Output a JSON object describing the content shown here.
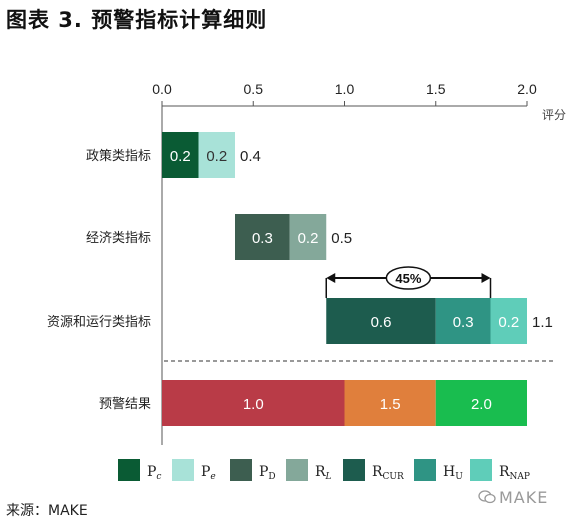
{
  "figure_title": "图表 3. 预警指标计算细则",
  "source_label": "来源：MAKE",
  "watermark_text": "MAKE",
  "chart_data": {
    "type": "bar",
    "orientation": "horizontal",
    "stacked": true,
    "title": "",
    "xlabel": "评分",
    "ylabel": "",
    "xlim": [
      0,
      2.0
    ],
    "x_ticks": [
      "0.0",
      "0.5",
      "1.0",
      "1.5",
      "2.0"
    ],
    "x_tick_values": [
      0,
      0.5,
      1.0,
      1.5,
      2.0
    ],
    "x_axis_position": "top",
    "grid": false,
    "categories": [
      "政策类指标",
      "经济类指标",
      "资源和运行类指标",
      "预警结果"
    ],
    "rows": [
      {
        "category": "政策类指标",
        "start": 0,
        "segments": [
          {
            "series": "Pc",
            "value": 0.2,
            "label": "0.2",
            "color": "#0a5b34",
            "label_color": "#ffffff"
          },
          {
            "series": "Pe",
            "value": 0.2,
            "label": "0.2",
            "color": "#a8e2d8",
            "label_color": "#333333"
          }
        ],
        "total_label": "0.4"
      },
      {
        "category": "经济类指标",
        "start": 0.4,
        "segments": [
          {
            "series": "PD",
            "value": 0.3,
            "label": "0.3",
            "color": "#3d5e50",
            "label_color": "#ffffff"
          },
          {
            "series": "RL",
            "value": 0.2,
            "label": "0.2",
            "color": "#84a89a",
            "label_color": "#ffffff"
          }
        ],
        "total_label": "0.5"
      },
      {
        "category": "资源和运行类指标",
        "start": 0.9,
        "segments": [
          {
            "series": "RCUR",
            "value": 0.6,
            "label": "0.6",
            "color": "#1d5c4e",
            "label_color": "#ffffff"
          },
          {
            "series": "HU",
            "value": 0.3,
            "label": "0.3",
            "color": "#2f9484",
            "label_color": "#ffffff"
          },
          {
            "series": "RNAP",
            "value": 0.2,
            "label": "0.2",
            "color": "#5fcdb9",
            "label_color": "#ffffff"
          }
        ],
        "total_label": "1.1"
      },
      {
        "category": "预警结果",
        "start": 0,
        "segments": [
          {
            "series": "",
            "value": 1.0,
            "label": "1.0",
            "color": "#b93b47",
            "label_color": "#ffffff"
          },
          {
            "series": "",
            "value": 0.5,
            "label": "1.5",
            "color": "#e07f3c",
            "label_color": "#ffffff"
          },
          {
            "series": "",
            "value": 0.5,
            "label": "2.0",
            "color": "#19bd4f",
            "label_color": "#ffffff"
          }
        ],
        "total_label": ""
      }
    ],
    "annotation": {
      "label": "45%",
      "from": 0.9,
      "to": 1.8,
      "row": "资源和运行类指标"
    },
    "divider": "dashed line between 资源和运行类指标 and 预警结果",
    "legend": {
      "placement": "bottom",
      "items": [
        {
          "main": "P",
          "sub": "c",
          "sub_style": "italic",
          "color": "#0a5b34"
        },
        {
          "main": "P",
          "sub": "e",
          "sub_style": "italic",
          "color": "#a8e2d8"
        },
        {
          "main": "P",
          "sub": "D",
          "sub_style": "normal",
          "color": "#3d5e50"
        },
        {
          "main": "R",
          "sub": "L",
          "sub_style": "italic",
          "color": "#84a89a"
        },
        {
          "main": "R",
          "sub": "CUR",
          "sub_style": "normal",
          "color": "#1d5c4e"
        },
        {
          "main": "H",
          "sub": "U",
          "sub_style": "normal",
          "color": "#2f9484"
        },
        {
          "main": "R",
          "sub": "NAP",
          "sub_style": "normal",
          "color": "#5fcdb9"
        }
      ]
    }
  }
}
